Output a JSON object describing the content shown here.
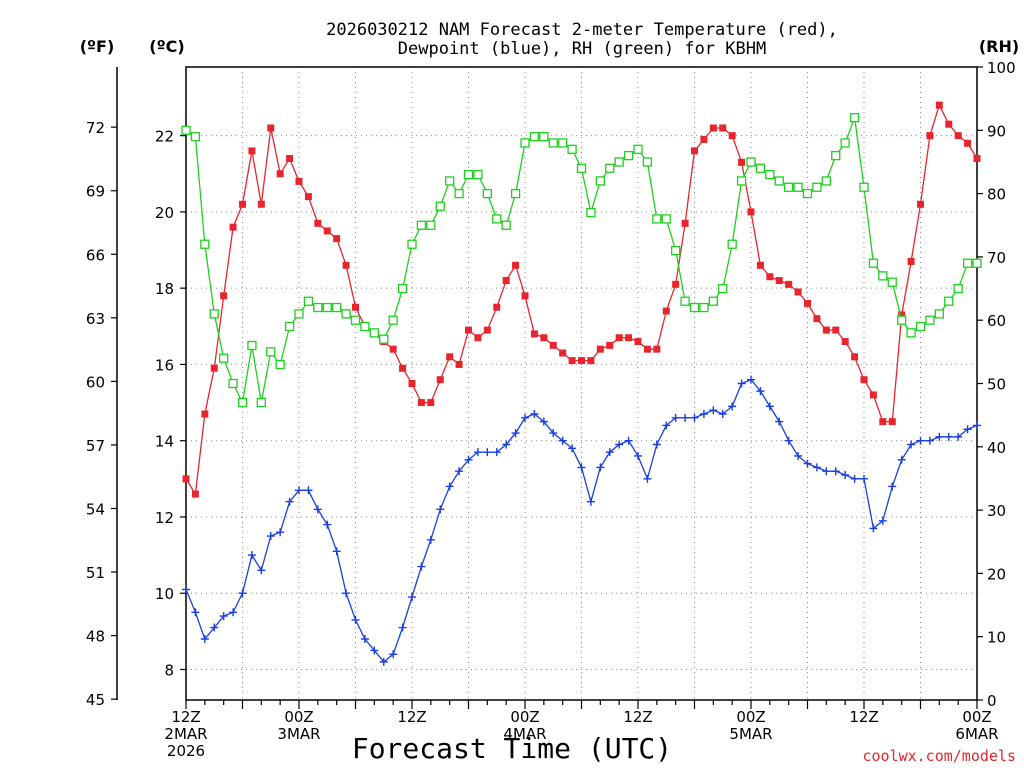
{
  "title_line1": "2026030212 NAM Forecast 2-meter Temperature (red),",
  "title_line2": "Dewpoint (blue), RH (green) for KBHM",
  "unit_f": "(ºF)",
  "unit_c": "(ºC)",
  "unit_rh": "(RH)",
  "xlabel": "Forecast Time (UTC)",
  "credit": "coolwx.com/models",
  "colors": {
    "temp": "#e8252d",
    "dewpoint": "#1a3fe0",
    "rh": "#1ed11e",
    "credit": "#e8252d"
  },
  "chart_data": {
    "type": "line",
    "x_unit": "forecast hour from 2026-03-02 12Z",
    "x": [
      0,
      1,
      2,
      3,
      4,
      5,
      6,
      7,
      8,
      9,
      10,
      11,
      12,
      13,
      14,
      15,
      16,
      17,
      18,
      19,
      20,
      21,
      22,
      23,
      24,
      25,
      26,
      27,
      28,
      29,
      30,
      31,
      32,
      33,
      34,
      35,
      36,
      37,
      38,
      39,
      40,
      41,
      42,
      43,
      44,
      45,
      46,
      47,
      48,
      49,
      50,
      51,
      52,
      53,
      54,
      55,
      56,
      57,
      58,
      59,
      60,
      61,
      62,
      63,
      64,
      65,
      66,
      67,
      68,
      69,
      70,
      71,
      72,
      73,
      74,
      75,
      76,
      77,
      78,
      79,
      80,
      81,
      82,
      83,
      84
    ],
    "xlim": [
      0,
      84
    ],
    "x_ticks": [
      {
        "hour": 0,
        "lines": [
          "12Z",
          "2MAR",
          "2026"
        ]
      },
      {
        "hour": 12,
        "lines": [
          "00Z",
          "3MAR"
        ]
      },
      {
        "hour": 24,
        "lines": [
          "12Z"
        ]
      },
      {
        "hour": 36,
        "lines": [
          "00Z",
          "4MAR"
        ]
      },
      {
        "hour": 48,
        "lines": [
          "12Z"
        ]
      },
      {
        "hour": 60,
        "lines": [
          "00Z",
          "5MAR"
        ]
      },
      {
        "hour": 72,
        "lines": [
          "12Z"
        ]
      },
      {
        "hour": 84,
        "lines": [
          "00Z",
          "6MAR"
        ]
      }
    ],
    "axes": {
      "celsius": {
        "ylim": [
          7.2,
          23.8
        ],
        "ticks": [
          8,
          10,
          12,
          14,
          16,
          18,
          20,
          22
        ]
      },
      "fahrenheit": {
        "ylim": [
          44.96,
          74.84
        ],
        "ticks": [
          45,
          48,
          51,
          54,
          57,
          60,
          63,
          66,
          69,
          72
        ]
      },
      "rh": {
        "ylim": [
          0,
          100
        ],
        "ticks": [
          0,
          10,
          20,
          30,
          40,
          50,
          60,
          70,
          80,
          90,
          100
        ]
      }
    },
    "grid": true,
    "series": [
      {
        "name": "Temperature",
        "axis": "celsius",
        "marker": "filled-square",
        "values": [
          13.0,
          12.6,
          14.7,
          15.9,
          17.8,
          19.6,
          20.2,
          21.6,
          20.2,
          22.2,
          21.0,
          21.4,
          20.8,
          20.4,
          19.7,
          19.5,
          19.3,
          18.6,
          17.5,
          17.0,
          16.8,
          16.6,
          16.4,
          15.9,
          15.5,
          15.0,
          15.0,
          15.6,
          16.2,
          16.0,
          16.9,
          16.7,
          16.9,
          17.5,
          18.2,
          18.6,
          17.8,
          16.8,
          16.7,
          16.5,
          16.3,
          16.1,
          16.1,
          16.1,
          16.4,
          16.5,
          16.7,
          16.7,
          16.6,
          16.4,
          16.4,
          17.4,
          18.1,
          19.7,
          21.6,
          21.9,
          22.2,
          22.2,
          22.0,
          21.3,
          20.0,
          18.6,
          18.3,
          18.2,
          18.1,
          17.9,
          17.6,
          17.2,
          16.9,
          16.9,
          16.6,
          16.2,
          15.6,
          15.2,
          14.5,
          14.5,
          17.3,
          18.7,
          20.2,
          22.0,
          22.8,
          22.3,
          22.0,
          21.8,
          21.4
        ]
      },
      {
        "name": "Dewpoint",
        "axis": "celsius",
        "marker": "plus",
        "values": [
          10.1,
          9.5,
          8.8,
          9.1,
          9.4,
          9.5,
          10.0,
          11.0,
          10.6,
          11.5,
          11.6,
          12.4,
          12.7,
          12.7,
          12.2,
          11.8,
          11.1,
          10.0,
          9.3,
          8.8,
          8.5,
          8.2,
          8.4,
          9.1,
          9.9,
          10.7,
          11.4,
          12.2,
          12.8,
          13.2,
          13.5,
          13.7,
          13.7,
          13.7,
          13.9,
          14.2,
          14.6,
          14.7,
          14.5,
          14.2,
          14.0,
          13.8,
          13.3,
          12.4,
          13.3,
          13.7,
          13.9,
          14.0,
          13.6,
          13.0,
          13.9,
          14.4,
          14.6,
          14.6,
          14.6,
          14.7,
          14.8,
          14.7,
          14.9,
          15.5,
          15.6,
          15.3,
          14.9,
          14.5,
          14.0,
          13.6,
          13.4,
          13.3,
          13.2,
          13.2,
          13.1,
          13.0,
          13.0,
          11.7,
          11.9,
          12.8,
          13.5,
          13.9,
          14.0,
          14.0,
          14.1,
          14.1,
          14.1,
          14.3,
          14.4
        ]
      },
      {
        "name": "RH",
        "axis": "rh",
        "marker": "open-square",
        "values": [
          90,
          89,
          72,
          61,
          54,
          50,
          47,
          56,
          47,
          55,
          53,
          59,
          61,
          63,
          62,
          62,
          62,
          61,
          60,
          59,
          58,
          57,
          60,
          65,
          72,
          75,
          75,
          78,
          82,
          80,
          83,
          83,
          80,
          76,
          75,
          80,
          88,
          89,
          89,
          88,
          88,
          87,
          84,
          77,
          82,
          84,
          85,
          86,
          87,
          85,
          76,
          76,
          71,
          63,
          62,
          62,
          63,
          65,
          72,
          82,
          85,
          84,
          83,
          82,
          81,
          81,
          80,
          81,
          82,
          86,
          88,
          92,
          81,
          69,
          67,
          66,
          60,
          58,
          59,
          60,
          61,
          63,
          65,
          69,
          69
        ]
      }
    ]
  }
}
